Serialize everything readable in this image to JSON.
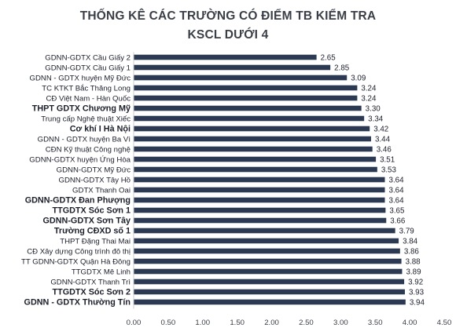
{
  "chart_data": {
    "type": "bar",
    "orientation": "horizontal",
    "title_lines": [
      "THỐNG KÊ CÁC TRƯỜNG CÓ ĐIỂM TB KIỂM TRA",
      "KSCL DƯỚI 4"
    ],
    "categories": [
      "GDNN-GDTX Cầu Giấy 2",
      "GDNN-GDTX Cầu Giấy 1",
      "GDNN - GDTX huyện Mỹ Đức",
      "TC KTKT Bắc Thăng Long",
      "CĐ Việt Nam - Hàn Quốc",
      "THPT GDTX Chương Mỹ",
      "Trung cấp Nghệ thuật Xiếc",
      "Cơ khí I Hà Nội",
      "GDNN - GDTX huyện Ba Vì",
      "CĐN Kỹ thuật Công nghệ",
      "GDNN-GDTX huyện Ứng Hòa",
      "GDNN-GDTX Mỹ Đức",
      "GDNN-GDTX Tây Hồ",
      "GDTX Thanh Oai",
      "GDNN-GDTX Đan Phượng",
      "TTGDTX Sóc Sơn 1",
      "GDNN-GDTX  Sơn Tây",
      "Trường CĐXD số 1",
      "THPT Đặng Thai Mai",
      "CĐ Xây dựng Công trình đô thị",
      "TT GDNN-GDTX Quận Hà Đông",
      "TTGDTX Mê Linh",
      "GDNN-GDTX Thanh Trì",
      "TTGDTX Sóc Sơn 2",
      "GDNN - GDTX Thường Tín"
    ],
    "values": [
      2.65,
      2.85,
      3.09,
      3.24,
      3.24,
      3.3,
      3.34,
      3.42,
      3.44,
      3.46,
      3.51,
      3.53,
      3.64,
      3.64,
      3.64,
      3.65,
      3.66,
      3.79,
      3.84,
      3.86,
      3.88,
      3.89,
      3.92,
      3.93,
      3.94
    ],
    "value_labels": [
      "2.65",
      "2.85",
      "3.09",
      "3.24",
      "3.24",
      "3.30",
      "3.34",
      "3.42",
      "3.44",
      "3.46",
      "3.51",
      "3.53",
      "3.64",
      "3.64",
      "3.64",
      "3.65",
      "3.66",
      "3.79",
      "3.84",
      "3.86",
      "3.88",
      "3.89",
      "3.92",
      "3.93",
      "3.94"
    ],
    "bold_categories": [
      5,
      7,
      14,
      15,
      16,
      17,
      23,
      24
    ],
    "xlim": [
      0,
      4.5
    ],
    "x_ticks": [
      "0.00",
      "0.50",
      "1.00",
      "1.50",
      "2.00",
      "2.50",
      "3.00",
      "3.50",
      "4.00",
      "4.50"
    ],
    "bar_color": "#2b3a52",
    "grid": false,
    "legend": "none"
  }
}
